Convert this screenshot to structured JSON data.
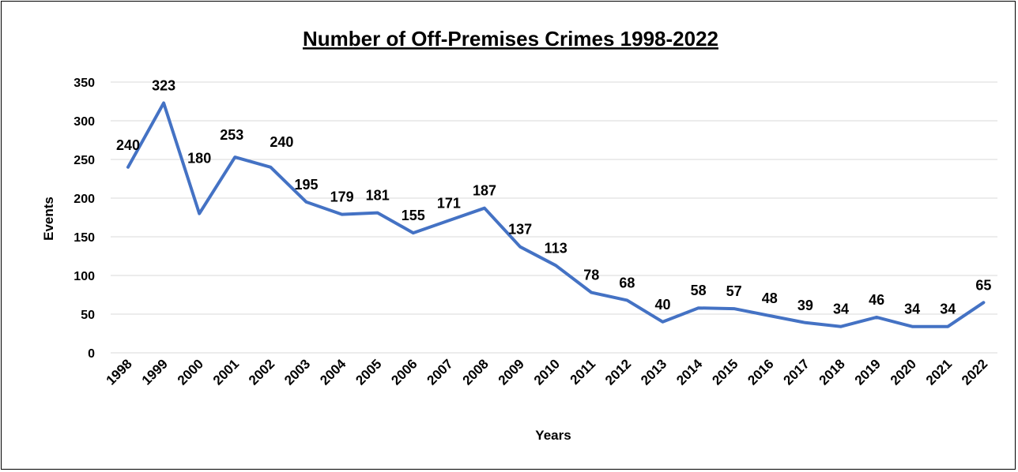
{
  "chart_data": {
    "type": "line",
    "title": "Number of Off-Premises Crimes 1998-2022",
    "xlabel": "Years",
    "ylabel": "Events",
    "ylim": [
      0,
      350
    ],
    "yticks": [
      0,
      50,
      100,
      150,
      200,
      250,
      300,
      350
    ],
    "grid": true,
    "legend": "none",
    "line_color": "#4472c4",
    "categories": [
      "1998",
      "1999",
      "2000",
      "2001",
      "2002",
      "2003",
      "2004",
      "2005",
      "2006",
      "2007",
      "2008",
      "2009",
      "2010",
      "2011",
      "2012",
      "2013",
      "2014",
      "2015",
      "2016",
      "2017",
      "2018",
      "2019",
      "2020",
      "2021",
      "2022"
    ],
    "series": [
      {
        "values": [
          240,
          323,
          180,
          253,
          240,
          195,
          179,
          181,
          155,
          171,
          187,
          137,
          113,
          78,
          68,
          40,
          58,
          57,
          48,
          39,
          34,
          46,
          34,
          34,
          65
        ]
      }
    ]
  }
}
